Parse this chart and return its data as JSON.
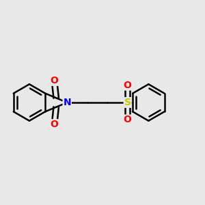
{
  "background_color": "#e8e8e8",
  "bond_color": "#000000",
  "bond_lw": 1.8,
  "atom_colors": {
    "O": "#ff0000",
    "N": "#0000ff",
    "S": "#cccc00"
  },
  "font_size": 10,
  "figsize": [
    3.0,
    3.0
  ],
  "dpi": 100,
  "scale": 1.0
}
